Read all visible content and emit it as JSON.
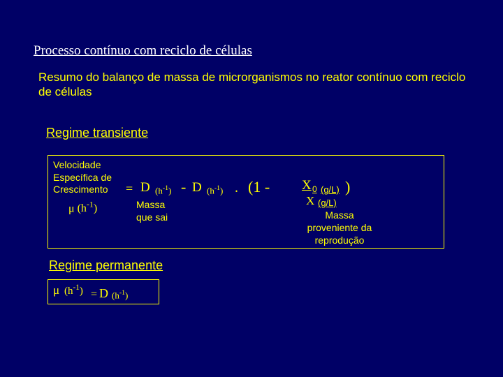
{
  "colors": {
    "background": "#000066",
    "title_text": "#ffffff",
    "body_text": "#ffff00",
    "box_border": "#ffff00"
  },
  "title": "Processo contínuo com reciclo de células",
  "subtitle": "Resumo do balanço de massa de microrganismos no reator contínuo com reciclo de células",
  "regime_transiente": {
    "heading": "Regime transiente",
    "vel_line1": "Velocidade",
    "vel_line2": "Específica de",
    "vel_line3": "Crescimento",
    "mu_symbol": "μ",
    "mu_unit": "(h⁻¹)",
    "equals": "=",
    "D_symbol": "D",
    "D_unit": "(h⁻¹)",
    "minus": "-",
    "dot": ".",
    "paren_open": "(1 -",
    "X0_symbol": "X",
    "X0_sub": "0",
    "X0_unit": "(g/L)",
    "paren_close": ")",
    "X_symbol": "X",
    "X_unit": "(g/L)",
    "massa_sai_l1": "Massa",
    "massa_sai_l2": "que sai",
    "massa_repro_l1": "Massa",
    "massa_repro_l2": "proveniente da",
    "massa_repro_l3": "reprodução"
  },
  "regime_permanente": {
    "heading": "Regime permanente",
    "mu_symbol": "μ",
    "mu_unit": "(h⁻¹)",
    "equals": "=",
    "D_symbol": "D",
    "D_unit": "(h⁻¹)"
  }
}
